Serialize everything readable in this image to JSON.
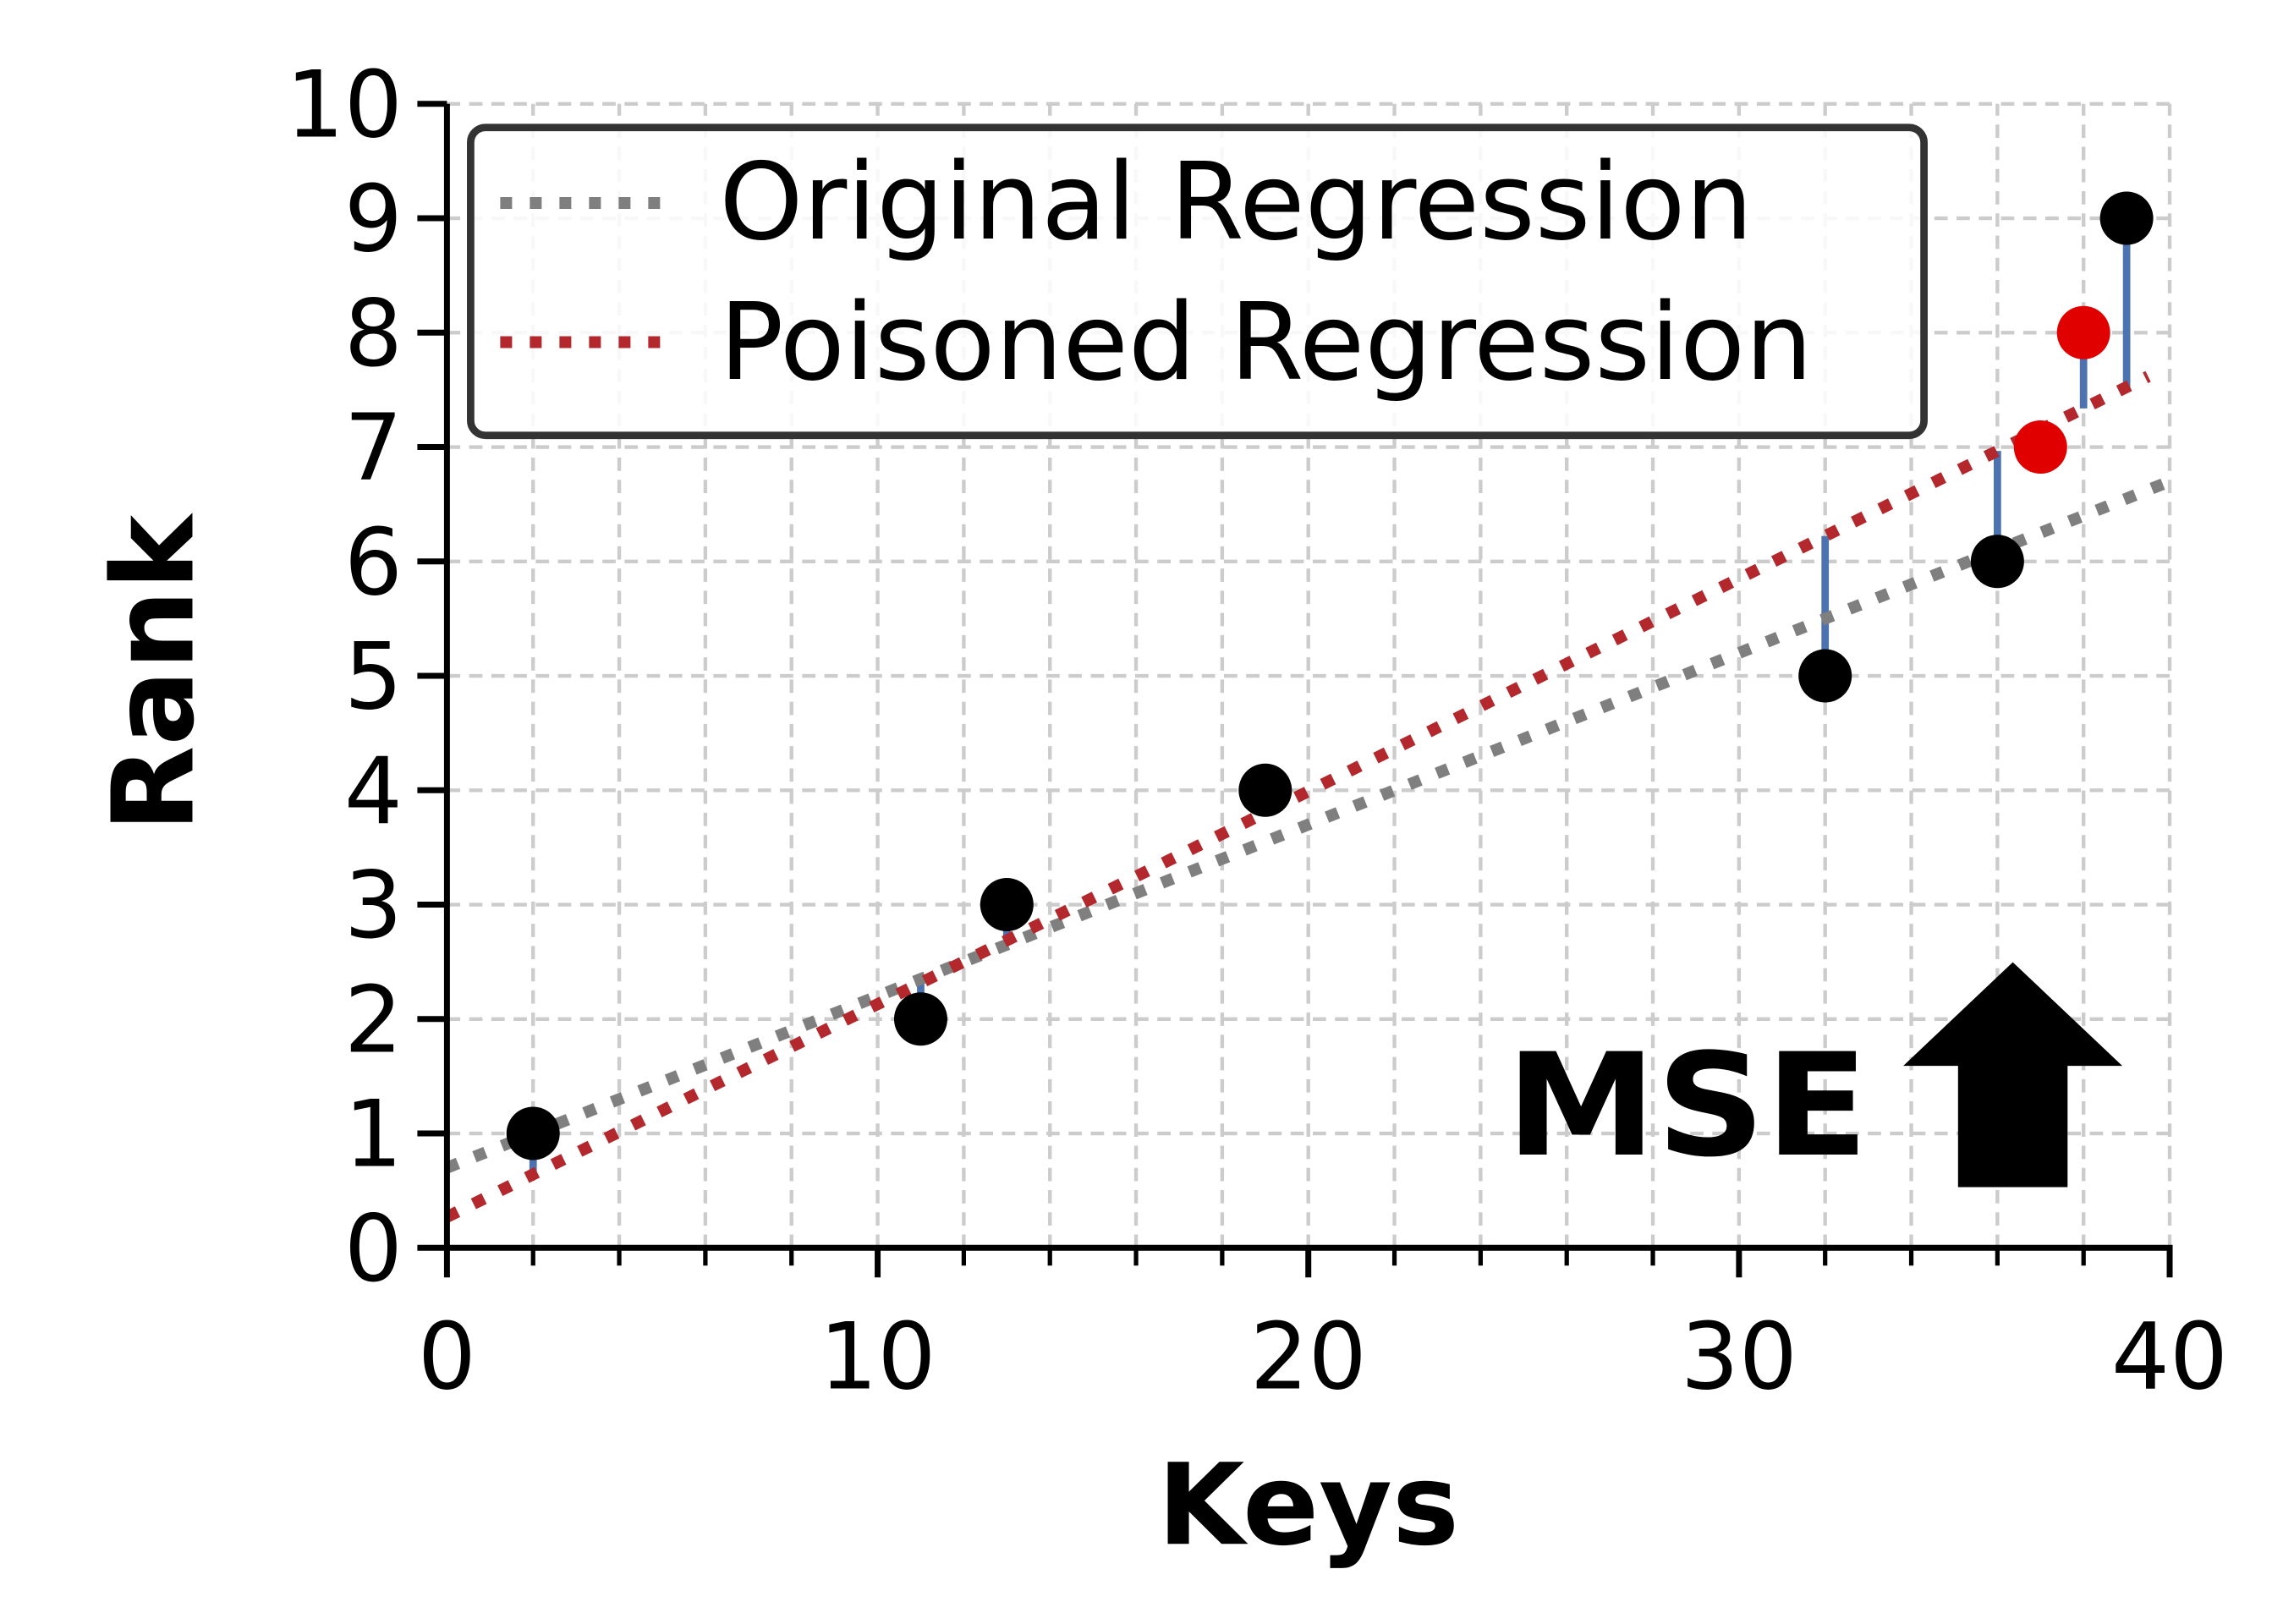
{
  "chart_data": {
    "type": "scatter",
    "xlabel": "Keys",
    "ylabel": "Rank",
    "xlim": [
      0,
      40
    ],
    "ylim": [
      0,
      10
    ],
    "xticks": [
      "0",
      "10",
      "20",
      "30",
      "40"
    ],
    "yticks": [
      "0",
      "1",
      "2",
      "3",
      "4",
      "5",
      "6",
      "7",
      "8",
      "9",
      "10"
    ],
    "grid": true,
    "legend_position": "top-left",
    "points": [
      {
        "x": 2,
        "y": 1,
        "poisoned": false
      },
      {
        "x": 11,
        "y": 2,
        "poisoned": false
      },
      {
        "x": 13,
        "y": 3,
        "poisoned": false
      },
      {
        "x": 19,
        "y": 4,
        "poisoned": false
      },
      {
        "x": 32,
        "y": 5,
        "poisoned": false
      },
      {
        "x": 36,
        "y": 6,
        "poisoned": false
      },
      {
        "x": 37,
        "y": 7,
        "poisoned": true
      },
      {
        "x": 38,
        "y": 8,
        "poisoned": true
      },
      {
        "x": 39,
        "y": 9,
        "poisoned": false
      }
    ],
    "series": [
      {
        "name": "Original Regression",
        "slope": 0.15,
        "intercept": 0.7,
        "x_range": [
          0,
          40
        ],
        "color": "#7f7f7f"
      },
      {
        "name": "Poisoned Regression",
        "slope": 0.186,
        "intercept": 0.27,
        "x_range": [
          0,
          39.5
        ],
        "color": "#b2282c"
      }
    ],
    "residual_color": "#4c72b0",
    "point_color": "#000000",
    "poison_color": "#e00000",
    "annotation": "MSE"
  }
}
